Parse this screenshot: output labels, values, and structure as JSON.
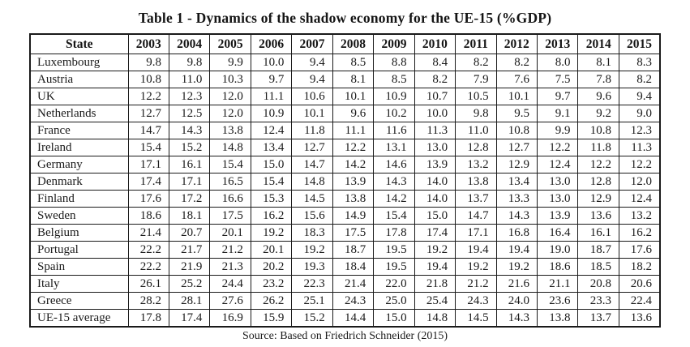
{
  "title": "Table 1 - Dynamics of the shadow economy for the UE-15 (%GDP)",
  "source": "Source: Based on Friedrich Schneider (2015)",
  "table": {
    "columns": [
      "State",
      "2003",
      "2004",
      "2005",
      "2006",
      "2007",
      "2008",
      "2009",
      "2010",
      "2011",
      "2012",
      "2013",
      "2014",
      "2015"
    ],
    "rows": [
      {
        "state": "Luxembourg",
        "values": [
          "9.8",
          "9.8",
          "9.9",
          "10.0",
          "9.4",
          "8.5",
          "8.8",
          "8.4",
          "8.2",
          "8.2",
          "8.0",
          "8.1",
          "8.3"
        ]
      },
      {
        "state": "Austria",
        "values": [
          "10.8",
          "11.0",
          "10.3",
          "9.7",
          "9.4",
          "8.1",
          "8.5",
          "8.2",
          "7.9",
          "7.6",
          "7.5",
          "7.8",
          "8.2"
        ]
      },
      {
        "state": "UK",
        "values": [
          "12.2",
          "12.3",
          "12.0",
          "11.1",
          "10.6",
          "10.1",
          "10.9",
          "10.7",
          "10.5",
          "10.1",
          "9.7",
          "9.6",
          "9.4"
        ]
      },
      {
        "state": "Netherlands",
        "values": [
          "12.7",
          "12.5",
          "12.0",
          "10.9",
          "10.1",
          "9.6",
          "10.2",
          "10.0",
          "9.8",
          "9.5",
          "9.1",
          "9.2",
          "9.0"
        ]
      },
      {
        "state": "France",
        "values": [
          "14.7",
          "14.3",
          "13.8",
          "12.4",
          "11.8",
          "11.1",
          "11.6",
          "11.3",
          "11.0",
          "10.8",
          "9.9",
          "10.8",
          "12.3"
        ]
      },
      {
        "state": "Ireland",
        "values": [
          "15.4",
          "15.2",
          "14.8",
          "13.4",
          "12.7",
          "12.2",
          "13.1",
          "13.0",
          "12.8",
          "12.7",
          "12.2",
          "11.8",
          "11.3"
        ]
      },
      {
        "state": "Germany",
        "values": [
          "17.1",
          "16.1",
          "15.4",
          "15.0",
          "14.7",
          "14.2",
          "14.6",
          "13.9",
          "13.2",
          "12.9",
          "12.4",
          "12.2",
          "12.2"
        ]
      },
      {
        "state": "Denmark",
        "values": [
          "17.4",
          "17.1",
          "16.5",
          "15.4",
          "14.8",
          "13.9",
          "14.3",
          "14.0",
          "13.8",
          "13.4",
          "13.0",
          "12.8",
          "12.0"
        ]
      },
      {
        "state": "Finland",
        "values": [
          "17.6",
          "17.2",
          "16.6",
          "15.3",
          "14.5",
          "13.8",
          "14.2",
          "14.0",
          "13.7",
          "13.3",
          "13.0",
          "12.9",
          "12.4"
        ]
      },
      {
        "state": "Sweden",
        "values": [
          "18.6",
          "18.1",
          "17.5",
          "16.2",
          "15.6",
          "14.9",
          "15.4",
          "15.0",
          "14.7",
          "14.3",
          "13.9",
          "13.6",
          "13.2"
        ]
      },
      {
        "state": "Belgium",
        "values": [
          "21.4",
          "20.7",
          "20.1",
          "19.2",
          "18.3",
          "17.5",
          "17.8",
          "17.4",
          "17.1",
          "16.8",
          "16.4",
          "16.1",
          "16.2"
        ]
      },
      {
        "state": "Portugal",
        "values": [
          "22.2",
          "21.7",
          "21.2",
          "20.1",
          "19.2",
          "18.7",
          "19.5",
          "19.2",
          "19.4",
          "19.4",
          "19.0",
          "18.7",
          "17.6"
        ]
      },
      {
        "state": "Spain",
        "values": [
          "22.2",
          "21.9",
          "21.3",
          "20.2",
          "19.3",
          "18.4",
          "19.5",
          "19.4",
          "19.2",
          "19.2",
          "18.6",
          "18.5",
          "18.2"
        ]
      },
      {
        "state": "Italy",
        "values": [
          "26.1",
          "25.2",
          "24.4",
          "23.2",
          "22.3",
          "21.4",
          "22.0",
          "21.8",
          "21.2",
          "21.6",
          "21.1",
          "20.8",
          "20.6"
        ]
      },
      {
        "state": "Greece",
        "values": [
          "28.2",
          "28.1",
          "27.6",
          "26.2",
          "25.1",
          "24.3",
          "25.0",
          "25.4",
          "24.3",
          "24.0",
          "23.6",
          "23.3",
          "22.4"
        ]
      },
      {
        "state": "UE-15 average",
        "values": [
          "17.8",
          "17.4",
          "16.9",
          "15.9",
          "15.2",
          "14.4",
          "15.0",
          "14.8",
          "14.5",
          "14.3",
          "13.8",
          "13.7",
          "13.6"
        ]
      }
    ]
  }
}
